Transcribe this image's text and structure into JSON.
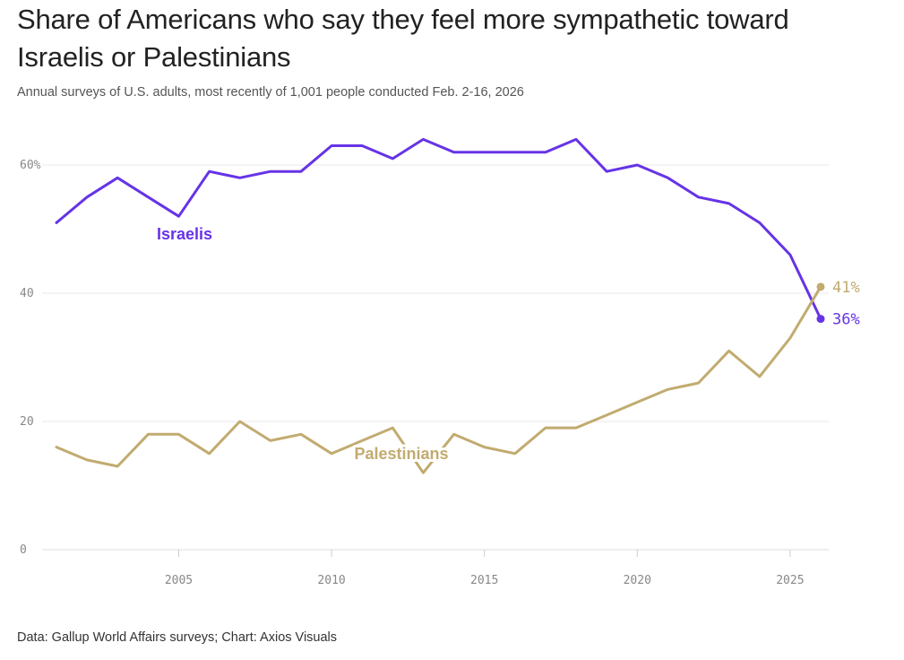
{
  "header": {
    "title": "Share of Americans who say they feel more sympathetic toward Israelis or Palestinians",
    "subtitle": "Annual surveys of U.S. adults, most recently of 1,001 people conducted Feb. 2-16, 2026"
  },
  "footer": {
    "source": "Data: Gallup World Affairs surveys; Chart: Axios Visuals"
  },
  "chart_data": {
    "type": "line",
    "title": "Share of Americans who say they feel more sympathetic toward Israelis or Palestinians",
    "subtitle": "Annual surveys of U.S. adults, most recently of 1,001 people conducted Feb. 2-16, 2026",
    "xlabel": "",
    "ylabel": "",
    "xlim": [
      2001,
      2026
    ],
    "ylim": [
      0,
      60
    ],
    "xticks": [
      2005,
      2010,
      2015,
      2020,
      2025
    ],
    "yticks": [
      {
        "value": 0,
        "label": "0"
      },
      {
        "value": 20,
        "label": "20"
      },
      {
        "value": 40,
        "label": "40"
      },
      {
        "value": 60,
        "label": "60%"
      }
    ],
    "grid": "horizontal",
    "x": [
      2001,
      2002,
      2003,
      2004,
      2005,
      2006,
      2007,
      2008,
      2009,
      2010,
      2011,
      2012,
      2013,
      2014,
      2015,
      2016,
      2017,
      2018,
      2019,
      2020,
      2021,
      2022,
      2023,
      2024,
      2025,
      2026
    ],
    "series": [
      {
        "name": "Israelis",
        "color": "#6633e6",
        "values": [
          51,
          55,
          58,
          55,
          52,
          59,
          58,
          59,
          59,
          63,
          63,
          61,
          64,
          62,
          62,
          62,
          62,
          64,
          59,
          60,
          58,
          55,
          54,
          51,
          46,
          36
        ],
        "end_label": "36%"
      },
      {
        "name": "Palestinians",
        "color": "#c1ab70",
        "values": [
          16,
          14,
          13,
          18,
          18,
          15,
          20,
          17,
          18,
          15,
          17,
          19,
          12,
          18,
          16,
          15,
          19,
          19,
          21,
          23,
          25,
          26,
          31,
          27,
          33,
          41
        ],
        "end_label": "41%"
      }
    ]
  }
}
